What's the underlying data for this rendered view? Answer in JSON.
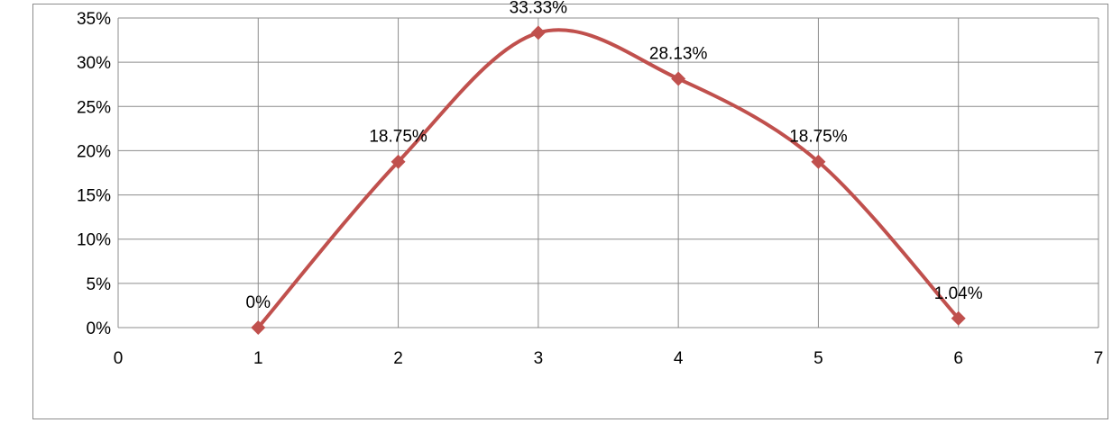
{
  "chart_data": {
    "type": "scatter",
    "title": "",
    "xlabel": "",
    "ylabel": "",
    "xlim": [
      0,
      7
    ],
    "ylim": [
      0,
      35
    ],
    "x_ticks": [
      "0",
      "1",
      "2",
      "3",
      "4",
      "5",
      "6",
      "7"
    ],
    "y_ticks": [
      "0%",
      "5%",
      "10%",
      "15%",
      "20%",
      "25%",
      "30%",
      "35%"
    ],
    "grid": true,
    "smooth_line": true,
    "marker": "diamond",
    "series_color": "#C0504D",
    "series": [
      {
        "x": [
          1,
          2,
          3,
          4,
          5,
          6
        ],
        "values": [
          0,
          18.75,
          33.33,
          28.13,
          18.75,
          1.04
        ],
        "labels": [
          "0%",
          "18.75%",
          "33.33%",
          "28.13%",
          "18.75%",
          "1.04%"
        ]
      }
    ]
  }
}
